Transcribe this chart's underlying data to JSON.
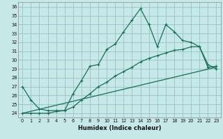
{
  "xlabel": "Humidex (Indice chaleur)",
  "bg_color": "#c6e8e8",
  "grid_color": "#9dc8c8",
  "line_color": "#1a6b5a",
  "xlim": [
    -0.5,
    23.5
  ],
  "ylim": [
    23.5,
    36.5
  ],
  "xticks": [
    0,
    1,
    2,
    3,
    4,
    5,
    6,
    7,
    8,
    9,
    10,
    11,
    12,
    13,
    14,
    15,
    16,
    17,
    18,
    19,
    20,
    21,
    22,
    23
  ],
  "yticks": [
    24,
    25,
    26,
    27,
    28,
    29,
    30,
    31,
    32,
    33,
    34,
    35,
    36
  ],
  "line1_x": [
    0,
    1,
    2,
    3,
    4,
    5,
    6,
    7,
    8,
    9,
    10,
    11,
    12,
    13,
    14,
    15,
    16,
    17,
    18,
    19,
    20,
    21,
    22,
    23
  ],
  "line1_y": [
    27.0,
    25.5,
    24.5,
    24.3,
    24.3,
    24.3,
    26.2,
    27.7,
    29.3,
    29.5,
    31.2,
    31.8,
    33.2,
    34.5,
    35.8,
    34.0,
    31.5,
    34.0,
    33.2,
    32.2,
    32.0,
    31.5,
    29.5,
    29.0
  ],
  "line2_x": [
    0,
    1,
    2,
    3,
    4,
    5,
    6,
    7,
    8,
    9,
    10,
    11,
    12,
    13,
    14,
    15,
    16,
    17,
    18,
    19,
    20,
    21,
    22,
    23
  ],
  "line2_y": [
    24.0,
    24.0,
    24.0,
    24.0,
    24.2,
    24.3,
    24.7,
    25.5,
    26.2,
    27.0,
    27.5,
    28.2,
    28.7,
    29.2,
    29.8,
    30.2,
    30.5,
    30.8,
    31.1,
    31.2,
    31.5,
    31.5,
    29.2,
    29.3
  ],
  "line3_x": [
    0,
    23
  ],
  "line3_y": [
    24.0,
    29.2
  ]
}
